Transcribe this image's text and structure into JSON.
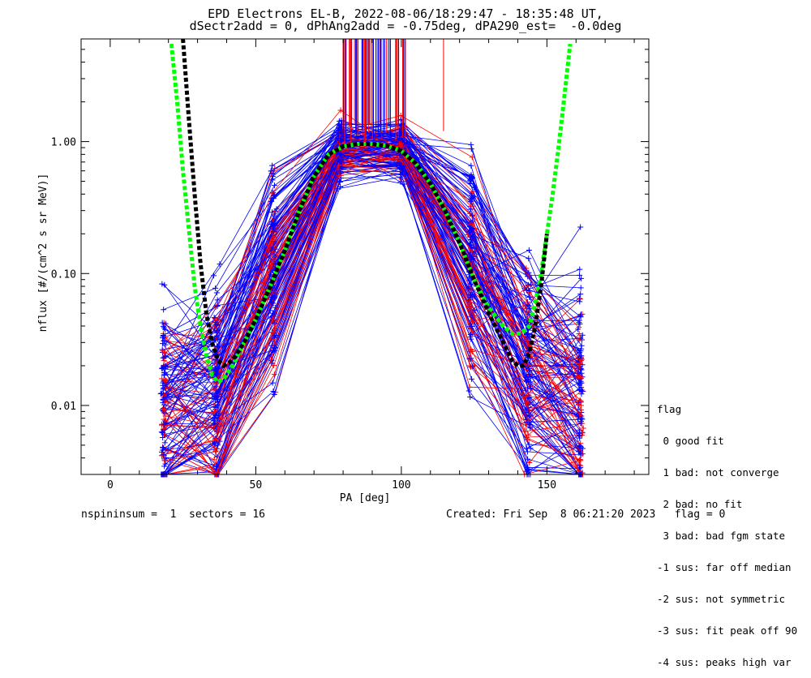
{
  "title": {
    "line1": "EPD Electrons EL-B, 2022-08-06/18:29:47 - 18:35:48 UT,",
    "line2": "dSectr2add = 0, dPhAng2add = -0.75deg, dPA290_est=  -0.0deg"
  },
  "footer": {
    "left": "nspininsum =  1  sectors = 16",
    "right": "Created: Fri Sep  8 06:21:20 2023   flag = 0"
  },
  "legend": {
    "title": "flag",
    "items": [
      " 0 good fit",
      " 1 bad: not converge",
      " 2 bad: no fit",
      " 3 bad: bad fgm state",
      "-1 sus: far off median",
      "-2 sus: not symmetric",
      "-3 sus: fit peak off 90",
      "-4 sus: peaks high var"
    ]
  },
  "colors": {
    "series_red": "#ff0000",
    "series_blue": "#0000ff",
    "fit_green": "#00ff00",
    "fit_black": "#000000"
  },
  "chart_data": {
    "type": "line",
    "xlabel": "PA [deg]",
    "ylabel": "nflux [#/(cm^2 s sr MeV)]",
    "xlim": [
      -10,
      185
    ],
    "ylim": [
      0.003,
      6
    ],
    "yscale": "log",
    "x_ticks": [
      0,
      50,
      100,
      150
    ],
    "x_tick_labels": [
      "0",
      "50",
      "100",
      "150"
    ],
    "y_ticks": [
      0.01,
      0.1,
      1.0
    ],
    "y_tick_labels": [
      "0.01",
      "0.10",
      "1.00"
    ],
    "pa_bins": [
      18.5,
      36.5,
      56,
      79,
      100,
      124,
      143.5,
      161.5
    ],
    "typical_profile": {
      "pa": [
        18.5,
        36.5,
        56,
        79,
        100,
        124,
        143.5,
        161.5
      ],
      "nflux": [
        0.009,
        0.012,
        0.1,
        0.9,
        0.9,
        0.12,
        0.02,
        0.012
      ]
    },
    "fit_curves": [
      {
        "color": "green",
        "pa": [
          21,
          23,
          25,
          27,
          29,
          31,
          33,
          35,
          37,
          39,
          42,
          46,
          50,
          55,
          60,
          65,
          70,
          75,
          80,
          85,
          90,
          95,
          100,
          105,
          110,
          115,
          120,
          125,
          130,
          135,
          138,
          141,
          144,
          146,
          148,
          150,
          152,
          154,
          156,
          158
        ],
        "nflux": [
          5.5,
          2.0,
          0.6,
          0.22,
          0.08,
          0.04,
          0.024,
          0.017,
          0.015,
          0.016,
          0.02,
          0.03,
          0.045,
          0.08,
          0.15,
          0.3,
          0.55,
          0.8,
          0.92,
          0.96,
          0.96,
          0.93,
          0.85,
          0.68,
          0.48,
          0.3,
          0.17,
          0.09,
          0.055,
          0.04,
          0.035,
          0.035,
          0.04,
          0.06,
          0.1,
          0.2,
          0.4,
          0.9,
          2.2,
          5.5
        ]
      },
      {
        "color": "black",
        "pa": [
          25,
          27,
          29,
          31,
          33,
          35,
          37,
          39,
          42,
          46,
          50,
          55,
          60,
          65,
          70,
          75,
          80,
          85,
          90,
          95,
          100,
          105,
          110,
          115,
          120,
          125,
          130,
          135,
          138,
          140,
          142,
          144,
          146,
          148,
          150
        ],
        "nflux": [
          6.0,
          1.5,
          0.4,
          0.12,
          0.05,
          0.03,
          0.022,
          0.02,
          0.022,
          0.03,
          0.045,
          0.08,
          0.15,
          0.3,
          0.55,
          0.8,
          0.92,
          0.96,
          0.96,
          0.93,
          0.85,
          0.68,
          0.48,
          0.3,
          0.17,
          0.09,
          0.05,
          0.03,
          0.022,
          0.02,
          0.02,
          0.025,
          0.04,
          0.08,
          0.2
        ]
      }
    ]
  }
}
